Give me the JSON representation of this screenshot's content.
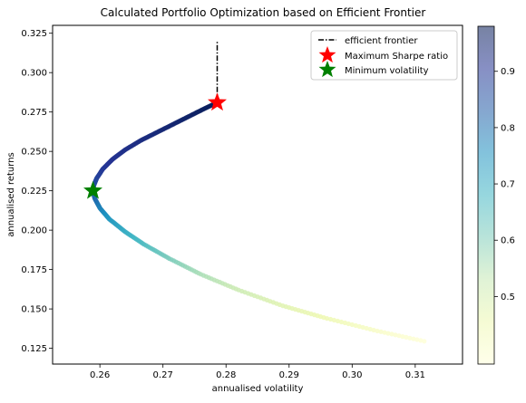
{
  "chart_data": {
    "type": "scatter",
    "title": "Calculated Portfolio Optimization based on Efficient Frontier",
    "xlabel": "annualised volatility",
    "ylabel": "annualised returns",
    "xlim": [
      0.2525,
      0.3175
    ],
    "ylim": [
      0.115,
      0.33
    ],
    "xticks": [
      "0.26",
      "0.27",
      "0.28",
      "0.29",
      "0.30",
      "0.31"
    ],
    "yticks": [
      "0.125",
      "0.150",
      "0.175",
      "0.200",
      "0.225",
      "0.250",
      "0.275",
      "0.300",
      "0.325"
    ],
    "grid": false,
    "legend_position": "top-right",
    "colormap": "YlGnBu",
    "colorbar": {
      "range": [
        0.38,
        0.98
      ],
      "ticks": [
        "0.5",
        "0.6",
        "0.7",
        "0.8",
        "0.9"
      ],
      "colors": [
        "#ffffd9",
        "#edf8b1",
        "#c7e9b4",
        "#7fcdbb",
        "#41b6c4",
        "#1d91c0",
        "#225ea8",
        "#253494",
        "#081d58"
      ]
    },
    "frontier_cloud": {
      "x": [
        0.2786,
        0.2765,
        0.274,
        0.2715,
        0.269,
        0.2665,
        0.264,
        0.262,
        0.2605,
        0.2595,
        0.259,
        0.2589,
        0.2592,
        0.26,
        0.2615,
        0.264,
        0.267,
        0.271,
        0.276,
        0.282,
        0.289,
        0.296,
        0.304,
        0.312
      ],
      "y": [
        0.281,
        0.277,
        0.272,
        0.267,
        0.262,
        0.257,
        0.251,
        0.245,
        0.239,
        0.233,
        0.228,
        0.225,
        0.22,
        0.214,
        0.207,
        0.199,
        0.191,
        0.182,
        0.172,
        0.162,
        0.152,
        0.144,
        0.136,
        0.129
      ],
      "color_values": [
        0.98,
        0.97,
        0.96,
        0.95,
        0.94,
        0.93,
        0.92,
        0.91,
        0.9,
        0.88,
        0.86,
        0.84,
        0.82,
        0.78,
        0.74,
        0.7,
        0.66,
        0.61,
        0.56,
        0.52,
        0.48,
        0.45,
        0.41,
        0.38
      ]
    },
    "series": [
      {
        "name": "efficient frontier",
        "style": "dash-dot",
        "color": "#000000",
        "x": [
          0.2786,
          0.2786
        ],
        "y": [
          0.281,
          0.32
        ]
      },
      {
        "name": "Maximum Sharpe ratio",
        "marker": "star",
        "color": "#ff0000",
        "x": [
          0.2786
        ],
        "y": [
          0.281
        ]
      },
      {
        "name": "Minimum volatility",
        "marker": "star",
        "color": "#008000",
        "x": [
          0.2589
        ],
        "y": [
          0.225
        ]
      }
    ]
  }
}
